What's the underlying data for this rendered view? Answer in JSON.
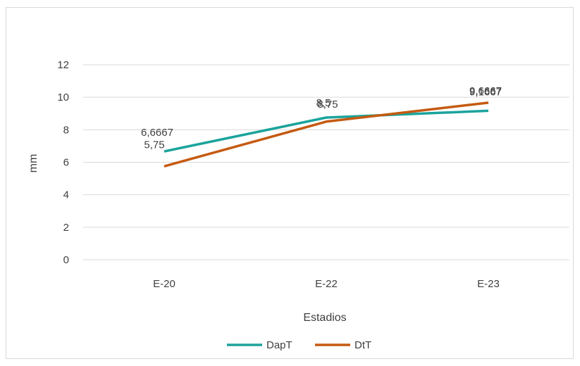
{
  "chart_data": {
    "type": "line",
    "categories": [
      "E-20",
      "E-22",
      "E-23"
    ],
    "series": [
      {
        "name": "DapT",
        "values": [
          6.6667,
          8.75,
          9.1667
        ],
        "labels": [
          "6,6667",
          "8,75",
          "9,1667"
        ],
        "color": "#1BA39C"
      },
      {
        "name": "DtT",
        "values": [
          5.75,
          8.5,
          9.6667
        ],
        "labels": [
          "5,75",
          "8,5",
          "9,6667"
        ],
        "color": "#C55A11"
      }
    ],
    "title": "",
    "xlabel": "Estadios",
    "ylabel": "mm",
    "ylim": [
      0,
      12
    ],
    "yticks": [
      0,
      2,
      4,
      6,
      8,
      10,
      12
    ],
    "grid": true,
    "legend_position": "bottom"
  }
}
